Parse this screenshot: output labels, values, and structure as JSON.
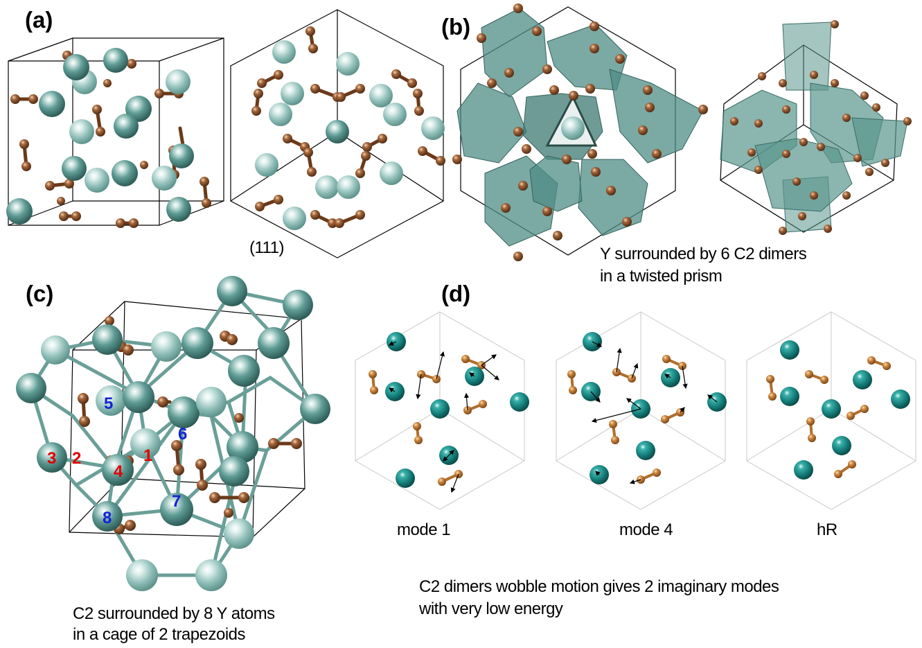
{
  "panels": {
    "a": {
      "label": "(a)",
      "direction_label": "(111)"
    },
    "b": {
      "label": "(b)",
      "caption": [
        "Y surrounded by 6 C2 dimers",
        "in a twisted prism"
      ]
    },
    "c": {
      "label": "(c)",
      "caption": [
        "C2 surrounded by 8 Y atoms",
        "in a cage of 2 trapezoids"
      ],
      "atom_numbers": [
        "1",
        "2",
        "3",
        "4",
        "5",
        "6",
        "7",
        "8"
      ]
    },
    "d": {
      "label": "(d)",
      "mode_labels": [
        "mode 1",
        "mode 4",
        "hR"
      ],
      "caption": [
        "C2 dimers wobble motion gives 2 imaginary modes",
        "with very low energy"
      ]
    }
  },
  "colors": {
    "y_atom": "#4e8d86",
    "y_atom_d": "#1a8b86",
    "c_atom": "#8a5533",
    "c_atom_d": "#c8813a",
    "polyhedron": "#5a958d",
    "red_number": "#e30000",
    "blue_number": "#1422d6"
  }
}
